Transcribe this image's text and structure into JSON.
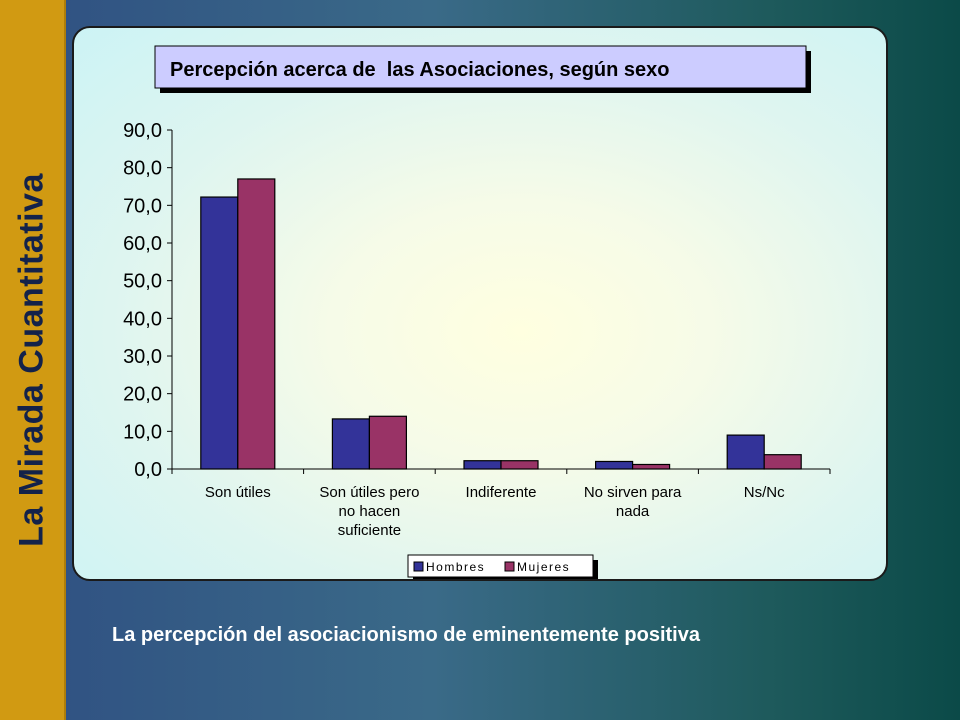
{
  "slide": {
    "side_title": "La Mirada Cuantitativa",
    "caption": "La percepción del asociacionismo de eminentemente positiva"
  },
  "chart_data": {
    "type": "bar",
    "title": "Percepción acerca de  las Asociaciones, según sexo",
    "xlabel": "",
    "ylabel": "",
    "categories": [
      [
        "Son útiles"
      ],
      [
        "Son útiles pero",
        "no hacen",
        "suficiente"
      ],
      [
        "Indiferente"
      ],
      [
        "No sirven para",
        "nada"
      ],
      [
        "Ns/Nc"
      ]
    ],
    "series": [
      {
        "name": "Hombres",
        "values": [
          72.2,
          13.3,
          2.2,
          2.0,
          9.0
        ],
        "color": "#333399"
      },
      {
        "name": "Mujeres",
        "values": [
          77.0,
          14.0,
          2.2,
          1.2,
          3.8
        ],
        "color": "#993366"
      }
    ],
    "ylim": [
      0,
      90
    ],
    "yticks": [
      "0,0",
      "10,0",
      "20,0",
      "30,0",
      "40,0",
      "50,0",
      "60,0",
      "70,0",
      "80,0",
      "90,0"
    ],
    "ytick_values": [
      0,
      10,
      20,
      30,
      40,
      50,
      60,
      70,
      80,
      90
    ],
    "grid": false,
    "legend_position": "bottom"
  }
}
